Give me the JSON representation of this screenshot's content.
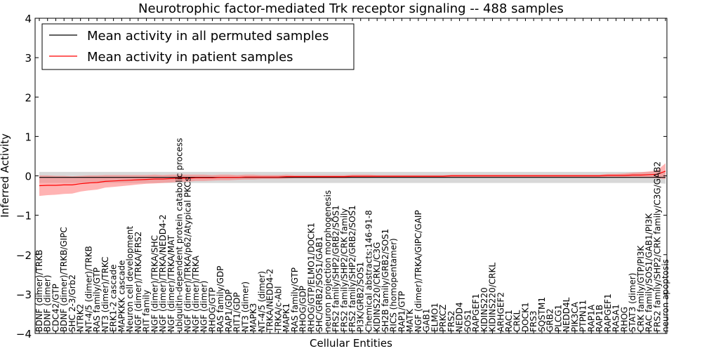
{
  "chart_data": {
    "type": "line",
    "title": "Neurotrophic factor-mediated Trk receptor signaling -- 488 samples",
    "xlabel": "Cellular Entities",
    "ylabel": "Inferred Activity",
    "ylim": [
      -4,
      4
    ],
    "yticks": [
      -4,
      -3,
      -2,
      -1,
      0,
      1,
      2,
      3,
      4
    ],
    "ytick_labels": [
      "−4",
      "−3",
      "−2",
      "−1",
      "0",
      "1",
      "2",
      "3",
      "4"
    ],
    "legend": {
      "placement": "top-left",
      "entries": [
        {
          "label": "Mean activity in all permuted samples",
          "color": "#000000"
        },
        {
          "label": "Mean activity in patient samples",
          "color": "#ff0000"
        }
      ]
    },
    "colors": {
      "patient_line": "#ff0000",
      "patient_band": "#ff8080",
      "permuted_line": "#000000",
      "permuted_band": "#c8c8c8"
    },
    "categories": [
      "BDNF (dimer)/TRKB",
      "BDNF (dimer)",
      "CDC42/GTP",
      "BDNF (dimer)/TRKB/GIPC",
      "SHC 2-3/Grb2",
      "NTRK2",
      "NT-4/5 (dimer)/TRKB",
      "RAS family/GTP",
      "NT3 (dimer)/TRKC",
      "ERK1-2 cascade",
      "MAPKKK cascade",
      "Neuron cell development",
      "NGF (dimer)/TRKA/FRS2",
      "RIT family",
      "NGF (dimer)/TRKA/SHC",
      "NGF (dimer)/TRKA/NEDD4-2",
      "NGF (dimer)/TRKA/MAT",
      "ubiquitin-dependent protein catabolic process",
      "NGF (dimer)/TRKA/p62/Atypical PKCs",
      "NGF (dimer)/TRKA",
      "NGF (dimer)",
      "RHOG/GTP",
      "RAS family/GDP",
      "RAP1/GDP",
      "RIT1/GDP",
      "NT3 (dimer)",
      "MAPK3",
      "NT-4/5 (dimer)",
      "TRKA/NEDD4-2",
      "TRKA/c-Abl",
      "MAPK1",
      "RAS family/GTP",
      "RHOG/GDP",
      "RHOG/GTP/ELMO1/DOCK1",
      "SHC/GRB2/SOS1/GAB1",
      "neuron projection morphogenesis",
      "FRS2 family/SHP2/GRB2/SOS1",
      "FRS2 family/SHP2/CRK family",
      "FRS2 family/SHP2/GRB2/SOS1",
      "PI3K/GRB2/SOS1",
      "Chemical abstracts:146-91-8",
      "KIDINS220/CRKL/C3G",
      "SH2B family/GRB2/SOS1",
      "RICS (homopentamer)",
      "RAP1/GTP",
      "MATK",
      "NGF (dimer)/TRKA/GIPC/GAIP",
      "GAB1",
      "ELMO1",
      "PRKCZ",
      "FRS2",
      "NEDD4",
      "SOS1",
      "RAPGEF1",
      "KIDINS220",
      "KIDINS220/CRKL",
      "ARHGEF2",
      "RAC1",
      "CRKL",
      "DOCK1",
      "FRS3",
      "SQSTM1",
      "GRB2",
      "PLCG1",
      "NEDD4L",
      "PIK3CA",
      "PTPN11",
      "RAP1A",
      "RAP1B",
      "RAPGEF1",
      "RASA1",
      "RHOG",
      "STAT3 (dimer)",
      "CRK family/GTP/PI3K",
      "RAC family/SOS1/GAB1/PI3K",
      "FRS2 family/SHP2/CRK family/C3G/GAB2",
      "neuron apoptosis"
    ],
    "permuted_mean": [
      -0.04,
      -0.04,
      -0.04,
      -0.04,
      -0.04,
      -0.04,
      -0.04,
      -0.04,
      -0.04,
      -0.04,
      -0.04,
      -0.04,
      -0.04,
      -0.04,
      -0.04,
      -0.04,
      -0.04,
      -0.04,
      -0.04,
      -0.04,
      -0.04,
      -0.04,
      -0.04,
      -0.04,
      -0.04,
      -0.04,
      -0.04,
      -0.04,
      -0.04,
      -0.04,
      -0.04,
      -0.04,
      -0.04,
      -0.04,
      -0.04,
      -0.04,
      -0.04,
      -0.04,
      -0.04,
      -0.04,
      -0.04,
      -0.04,
      -0.04,
      -0.04,
      -0.04,
      -0.04,
      -0.04,
      -0.04,
      -0.04,
      -0.04,
      -0.04,
      -0.04,
      -0.04,
      -0.04,
      -0.04,
      -0.04,
      -0.04,
      -0.04,
      -0.04,
      -0.04,
      -0.04,
      -0.04,
      -0.04,
      -0.04,
      -0.04,
      -0.04,
      -0.04,
      -0.04,
      -0.04,
      -0.04,
      -0.04,
      -0.04,
      -0.04,
      -0.04,
      -0.04,
      -0.04,
      -0.04
    ],
    "permuted_sd": [
      0.14,
      0.14,
      0.14,
      0.14,
      0.14,
      0.14,
      0.14,
      0.14,
      0.14,
      0.14,
      0.14,
      0.14,
      0.14,
      0.14,
      0.14,
      0.14,
      0.14,
      0.14,
      0.14,
      0.14,
      0.14,
      0.14,
      0.14,
      0.14,
      0.14,
      0.14,
      0.14,
      0.14,
      0.14,
      0.14,
      0.14,
      0.14,
      0.14,
      0.14,
      0.14,
      0.14,
      0.14,
      0.14,
      0.14,
      0.14,
      0.14,
      0.14,
      0.14,
      0.14,
      0.14,
      0.14,
      0.14,
      0.14,
      0.14,
      0.14,
      0.14,
      0.14,
      0.14,
      0.14,
      0.14,
      0.14,
      0.14,
      0.14,
      0.14,
      0.14,
      0.14,
      0.14,
      0.14,
      0.14,
      0.14,
      0.14,
      0.14,
      0.14,
      0.14,
      0.14,
      0.14,
      0.14,
      0.14,
      0.14,
      0.14,
      0.14,
      0.16
    ],
    "patient_mean": [
      -0.25,
      -0.24,
      -0.24,
      -0.23,
      -0.23,
      -0.2,
      -0.18,
      -0.17,
      -0.14,
      -0.13,
      -0.12,
      -0.11,
      -0.1,
      -0.09,
      -0.08,
      -0.08,
      -0.07,
      -0.06,
      -0.06,
      -0.05,
      -0.05,
      -0.05,
      -0.04,
      -0.04,
      -0.04,
      -0.03,
      -0.03,
      -0.03,
      -0.03,
      -0.03,
      -0.02,
      -0.02,
      -0.02,
      -0.02,
      -0.02,
      -0.02,
      -0.02,
      -0.02,
      -0.01,
      -0.01,
      -0.01,
      -0.01,
      -0.01,
      -0.01,
      -0.01,
      -0.01,
      -0.01,
      -0.01,
      -0.01,
      -0.01,
      0.0,
      0.0,
      0.0,
      0.0,
      0.0,
      0.0,
      0.0,
      0.0,
      0.0,
      0.0,
      0.0,
      0.0,
      0.0,
      0.0,
      0.0,
      0.0,
      0.0,
      0.0,
      0.0,
      0.01,
      0.01,
      0.01,
      0.02,
      0.02,
      0.03,
      0.04,
      0.12
    ],
    "patient_sd": [
      0.26,
      0.25,
      0.24,
      0.23,
      0.22,
      0.2,
      0.19,
      0.18,
      0.16,
      0.15,
      0.14,
      0.13,
      0.12,
      0.11,
      0.11,
      0.1,
      0.1,
      0.09,
      0.09,
      0.08,
      0.08,
      0.07,
      0.07,
      0.07,
      0.06,
      0.06,
      0.06,
      0.05,
      0.05,
      0.05,
      0.05,
      0.04,
      0.04,
      0.04,
      0.04,
      0.04,
      0.04,
      0.04,
      0.04,
      0.04,
      0.04,
      0.03,
      0.03,
      0.03,
      0.03,
      0.03,
      0.03,
      0.03,
      0.03,
      0.03,
      0.03,
      0.03,
      0.03,
      0.03,
      0.03,
      0.03,
      0.03,
      0.03,
      0.03,
      0.03,
      0.03,
      0.03,
      0.03,
      0.03,
      0.03,
      0.03,
      0.03,
      0.03,
      0.03,
      0.04,
      0.04,
      0.05,
      0.06,
      0.07,
      0.08,
      0.1,
      0.2
    ]
  }
}
